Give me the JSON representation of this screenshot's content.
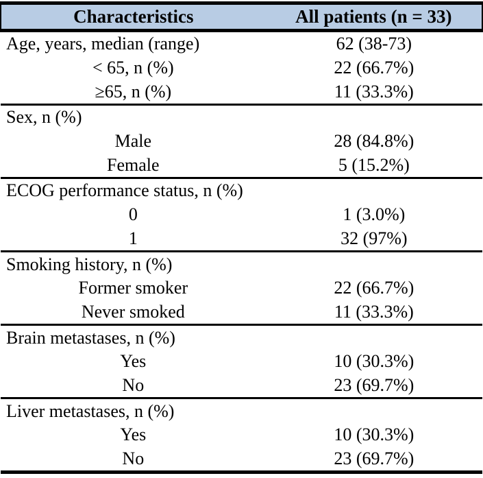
{
  "table": {
    "header": {
      "col1": "Characteristics",
      "col2": "All patients (n = 33)"
    },
    "sections": [
      {
        "rows": [
          {
            "label": "Age, years, median (range)",
            "indent": false,
            "value": "62 (38-73)"
          },
          {
            "label": "< 65, n (%)",
            "indent": true,
            "value": "22 (66.7%)"
          },
          {
            "label": "≥65, n (%)",
            "indent": true,
            "value": "11 (33.3%)"
          }
        ]
      },
      {
        "rows": [
          {
            "label": "Sex, n (%)",
            "indent": false,
            "value": ""
          },
          {
            "label": "Male",
            "indent": true,
            "value": "28 (84.8%)"
          },
          {
            "label": "Female",
            "indent": true,
            "value": "5 (15.2%)"
          }
        ]
      },
      {
        "rows": [
          {
            "label": "ECOG performance status, n (%)",
            "indent": false,
            "value": ""
          },
          {
            "label": "0",
            "indent": true,
            "value": "1 (3.0%)"
          },
          {
            "label": "1",
            "indent": true,
            "value": "32 (97%)"
          }
        ]
      },
      {
        "rows": [
          {
            "label": "Smoking history, n (%)",
            "indent": false,
            "value": ""
          },
          {
            "label": "Former smoker",
            "indent": true,
            "value": "22 (66.7%)"
          },
          {
            "label": "Never smoked",
            "indent": true,
            "value": "11 (33.3%)"
          }
        ]
      },
      {
        "rows": [
          {
            "label": "Brain metastases, n (%)",
            "indent": false,
            "value": ""
          },
          {
            "label": "Yes",
            "indent": true,
            "value": "10 (30.3%)"
          },
          {
            "label": "No",
            "indent": true,
            "value": "23 (69.7%)"
          }
        ]
      },
      {
        "rows": [
          {
            "label": "Liver metastases, n (%)",
            "indent": false,
            "value": ""
          },
          {
            "label": "Yes",
            "indent": true,
            "value": "10 (30.3%)"
          },
          {
            "label": "No",
            "indent": true,
            "value": "23 (69.7%)"
          }
        ]
      }
    ]
  },
  "colors": {
    "header_bg": "#b8cce4",
    "border": "#000000",
    "text": "#000000"
  }
}
